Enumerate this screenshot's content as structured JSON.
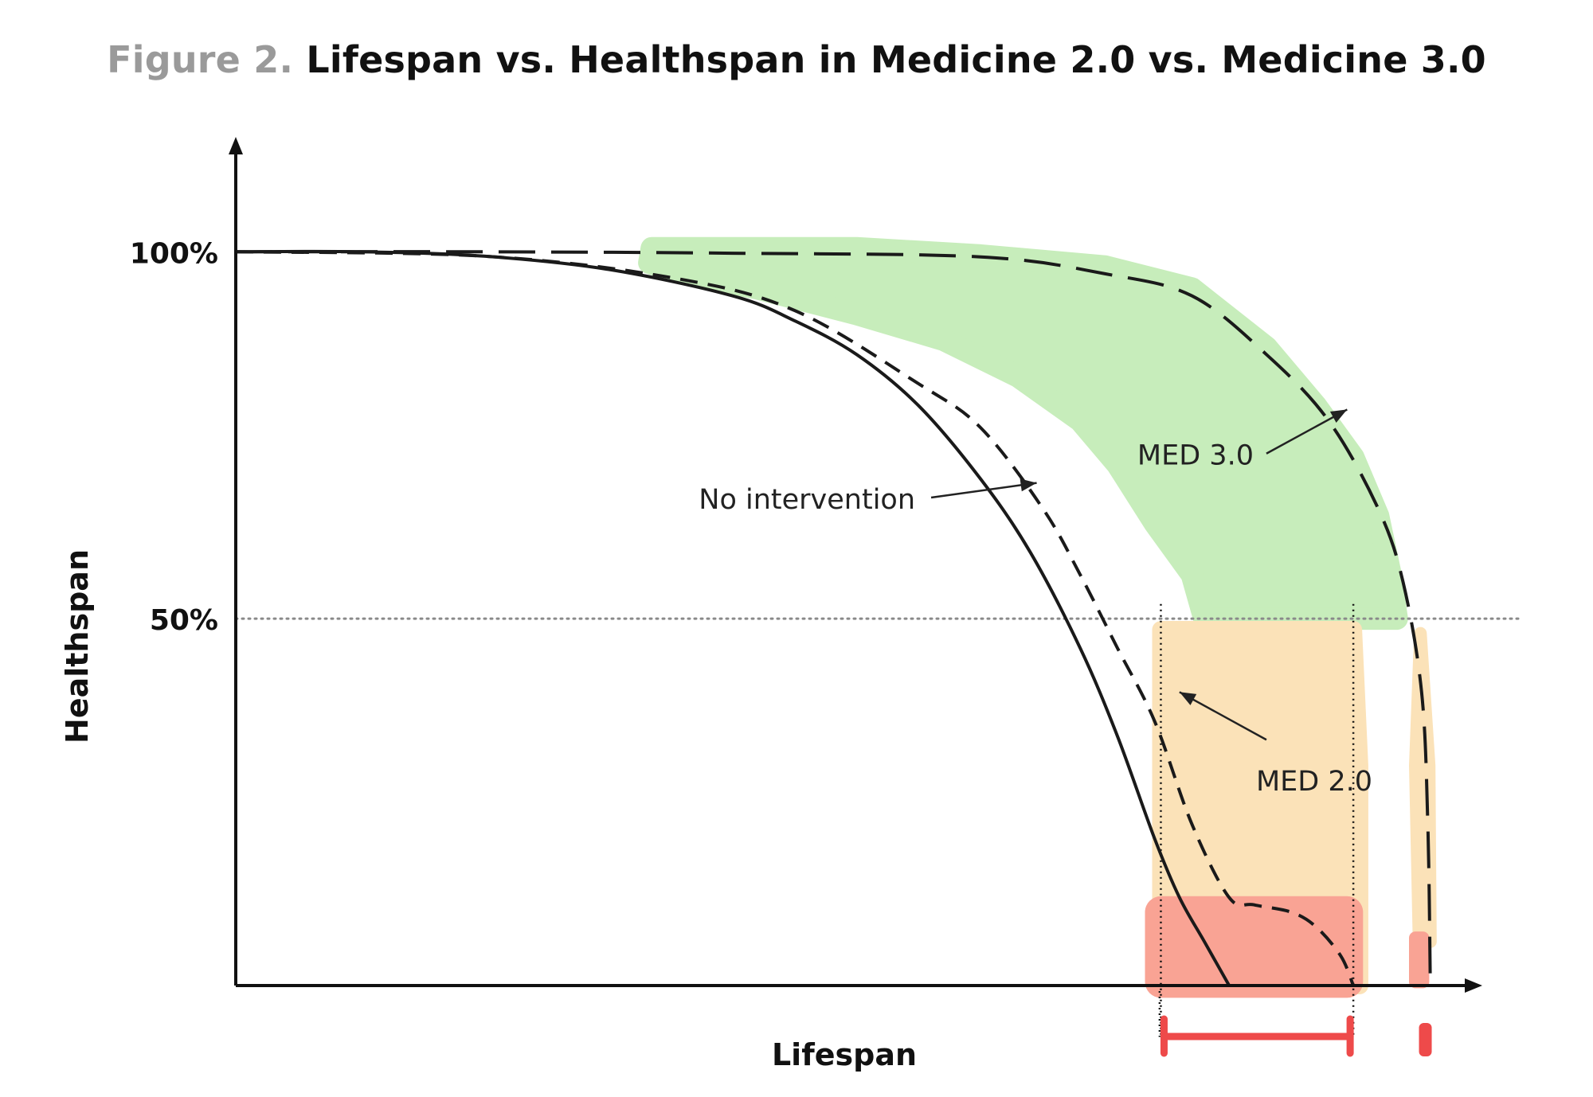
{
  "title": {
    "prefix": "Figure 2.",
    "main": "Lifespan vs. Healthspan in Medicine 2.0 vs. Medicine 3.0"
  },
  "chart_data": {
    "type": "line",
    "xlabel": "Lifespan",
    "ylabel": "Healthspan",
    "xlim": [
      0,
      100
    ],
    "ylim": [
      0,
      115
    ],
    "y_ticks": [
      {
        "value": 100,
        "label": "100%"
      },
      {
        "value": 50,
        "label": "50%"
      }
    ],
    "reference_line_y": 50,
    "series": [
      {
        "name": "No intervention",
        "style": "solid",
        "points": [
          [
            0,
            100
          ],
          [
            10,
            100
          ],
          [
            20,
            99.4
          ],
          [
            30,
            97.6
          ],
          [
            40,
            94
          ],
          [
            45,
            90.6
          ],
          [
            50,
            86
          ],
          [
            55,
            79
          ],
          [
            60,
            69
          ],
          [
            64,
            59
          ],
          [
            68,
            46
          ],
          [
            71,
            34
          ],
          [
            74,
            20
          ],
          [
            76,
            12
          ],
          [
            78,
            6
          ],
          [
            80,
            0
          ]
        ]
      },
      {
        "name": "MED 2.0",
        "style": "dashed-short",
        "points": [
          [
            0,
            100
          ],
          [
            20,
            99.4
          ],
          [
            35,
            96.5
          ],
          [
            45,
            92
          ],
          [
            55,
            82
          ],
          [
            60,
            76
          ],
          [
            65,
            65
          ],
          [
            68,
            56
          ],
          [
            71,
            46
          ],
          [
            74,
            36
          ],
          [
            77,
            22
          ],
          [
            80,
            12
          ],
          [
            82,
            11
          ],
          [
            85,
            10
          ],
          [
            87,
            8
          ],
          [
            89,
            4
          ],
          [
            90,
            0
          ]
        ]
      },
      {
        "name": "MED 3.0",
        "style": "dashed-long",
        "points": [
          [
            0,
            100
          ],
          [
            20,
            100
          ],
          [
            40,
            99.8
          ],
          [
            60,
            99.3
          ],
          [
            70,
            97
          ],
          [
            77,
            94
          ],
          [
            83,
            86
          ],
          [
            88,
            77
          ],
          [
            92,
            65
          ],
          [
            94,
            55
          ],
          [
            95.5,
            40
          ],
          [
            96,
            22
          ],
          [
            96.2,
            0
          ]
        ]
      }
    ],
    "annotations": [
      {
        "text": "No intervention",
        "x": 47,
        "y": 66
      },
      {
        "text": "MED 3.0",
        "x": 75,
        "y": 71
      },
      {
        "text": "MED 2.0",
        "x": 83,
        "y": 28
      }
    ],
    "colors": {
      "med3_region": "#c7edbb",
      "med2_region": "#fbe2b8",
      "decline_region": "#f9a394",
      "marker": "#ee4a4a",
      "curve": "#1a1a1a",
      "gridline": "#8a8a8a"
    }
  }
}
